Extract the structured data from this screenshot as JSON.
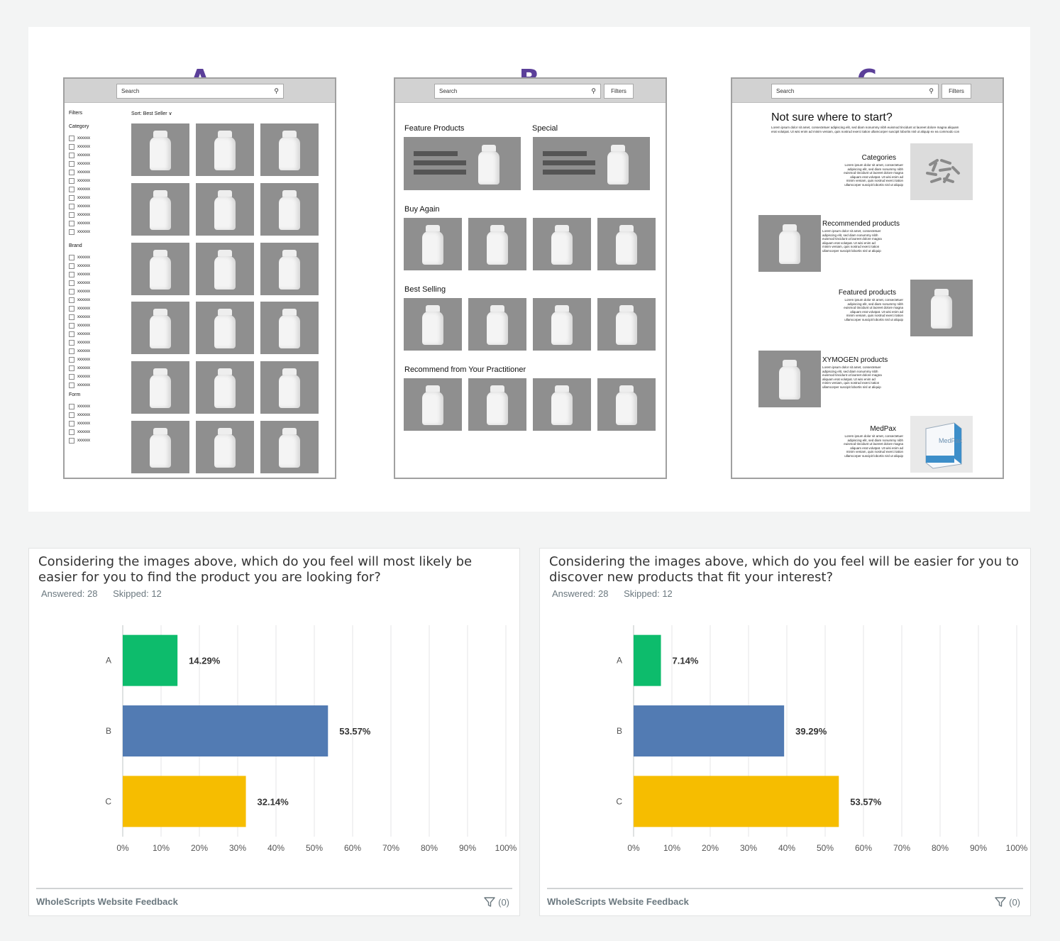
{
  "mockups": {
    "a": {
      "letter": "A",
      "search": "Search",
      "filters_title": "Filters",
      "sort": "Sort: Best Seller",
      "category_title": "Category",
      "brand_title": "Brand",
      "form_title": "Form",
      "option": "xxxxxx"
    },
    "b": {
      "letter": "B",
      "search": "Search",
      "filters": "Filters",
      "feature": "Feature Products",
      "special": "Special",
      "buy_again": "Buy Again",
      "best_selling": "Best Selling",
      "recommend": "Recommend from Your Practitioner"
    },
    "c": {
      "letter": "C",
      "search": "Search",
      "filters": "Filters",
      "headline": "Not sure where to start?",
      "intro": "Lorem ipsum dolor sit amet, consectetuer adipiscing elit, sed diam nonummy nibh euismod tincidunt ut laoreet dolore magna aliquam erat volutpat. Ut wisi enim ad minim veniam, quis nostrud exerci tation ullamcorper suscipit lobortis nisl ut aliquip ex ea commodo con",
      "categories": "Categories",
      "recommended": "Recommended products",
      "featured": "Featured products",
      "xymogen": "XYMOGEN products",
      "medpax": "MedPax",
      "lorem": "Lorem ipsum dolor sit amet, consectetuer adipiscing elit, sed diam nonummy nibh euismod tincidunt ut laoreet dolore magna aliquam erat volutpat. Ut wisi enim ad minim veniam, quis nostrud exerci tation ullamcorper suscipit lobortis nisl ut aliquip"
    }
  },
  "questions": [
    {
      "title": "Considering the images above, which do you feel will most likely be easier for you to find the product you are looking for?",
      "answered": "Answered: 28",
      "skipped": "Skipped: 12",
      "footer": "WholeScripts Website Feedback",
      "filter_count": "(0)"
    },
    {
      "title": "Considering the images above, which do you feel will be easier for you to discover new products that fit your interest?",
      "answered": "Answered: 28",
      "skipped": "Skipped: 12",
      "footer": "WholeScripts Website Feedback",
      "filter_count": "(0)"
    }
  ],
  "chart_data": [
    {
      "type": "bar",
      "orientation": "horizontal",
      "categories": [
        "A",
        "B",
        "C"
      ],
      "values": [
        14.29,
        53.57,
        32.14
      ],
      "value_labels": [
        "14.29%",
        "53.57%",
        "32.14%"
      ],
      "colors": [
        "#0dbc6c",
        "#527bb3",
        "#f6bd00"
      ],
      "x_ticks": [
        "0%",
        "10%",
        "20%",
        "30%",
        "40%",
        "50%",
        "60%",
        "70%",
        "80%",
        "90%",
        "100%"
      ],
      "xlim": [
        0,
        100
      ],
      "grid": true
    },
    {
      "type": "bar",
      "orientation": "horizontal",
      "categories": [
        "A",
        "B",
        "C"
      ],
      "values": [
        7.14,
        39.29,
        53.57
      ],
      "value_labels": [
        "7.14%",
        "39.29%",
        "53.57%"
      ],
      "colors": [
        "#0dbc6c",
        "#527bb3",
        "#f6bd00"
      ],
      "x_ticks": [
        "0%",
        "10%",
        "20%",
        "30%",
        "40%",
        "50%",
        "60%",
        "70%",
        "80%",
        "90%",
        "100%"
      ],
      "xlim": [
        0,
        100
      ],
      "grid": true
    }
  ]
}
